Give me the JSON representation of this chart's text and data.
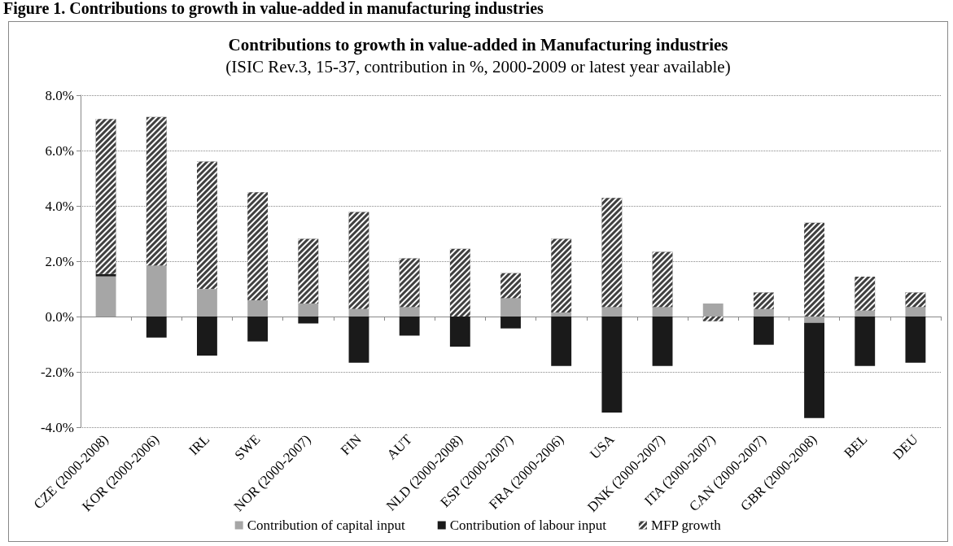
{
  "chart_data": {
    "type": "bar",
    "stacked": true,
    "title": "Contributions to growth in value-added in Manufacturing industries",
    "subtitle": "(ISIC Rev.3, 15-37, contribution in %, 2000-2009 or latest year available)",
    "annotations": [
      "Figure 1. Contributions to growth in value-added in manufacturing industries"
    ],
    "categories": [
      "CZE (2000-2008)",
      "KOR (2000-2006)",
      "IRL",
      "SWE",
      "NOR (2000-2007)",
      "FIN",
      "AUT",
      "NLD (2000-2008)",
      "ESP (2000-2007)",
      "FRA (2000-2006)",
      "USA",
      "DNK (2000-2007)",
      "ITA (2000-2007)",
      "CAN (2000-2007)",
      "GBR (2000-2008)",
      "BEL",
      "DEU"
    ],
    "series": [
      {
        "name": "Contribution of capital input",
        "color": "#a6a6a6",
        "values": [
          1.45,
          1.84,
          0.99,
          0.59,
          0.47,
          0.27,
          0.34,
          null,
          0.66,
          0.15,
          0.34,
          0.34,
          0.47,
          0.27,
          -0.23,
          0.21,
          0.34
        ]
      },
      {
        "name": "Contribution of labour input",
        "color": "#1a1a1a",
        "values": [
          0.09,
          -0.76,
          -1.41,
          -0.9,
          -0.25,
          -1.67,
          -0.69,
          -1.09,
          -0.43,
          -1.79,
          -3.47,
          -1.79,
          0,
          -1.02,
          -3.44,
          -1.79,
          -1.67
        ]
      },
      {
        "name": "MFP growth",
        "color": "#404040",
        "values": [
          5.6,
          5.37,
          4.61,
          3.9,
          2.34,
          3.51,
          1.76,
          2.45,
          0.91,
          2.66,
          3.95,
          2.0,
          -0.17,
          0.6,
          3.39,
          1.23,
          0.53
        ]
      }
    ],
    "ylim": [
      -4,
      8
    ],
    "yticks": [
      {
        "value": -4,
        "label": "-4.0%"
      },
      {
        "value": -2,
        "label": "-2.0%"
      },
      {
        "value": 0,
        "label": "0.0%"
      },
      {
        "value": 2,
        "label": "2.0%"
      },
      {
        "value": 4,
        "label": "4.0%"
      },
      {
        "value": 6,
        "label": "6.0%"
      },
      {
        "value": 8,
        "label": "8.0%"
      }
    ],
    "grid": "y",
    "legend": "bottom"
  }
}
